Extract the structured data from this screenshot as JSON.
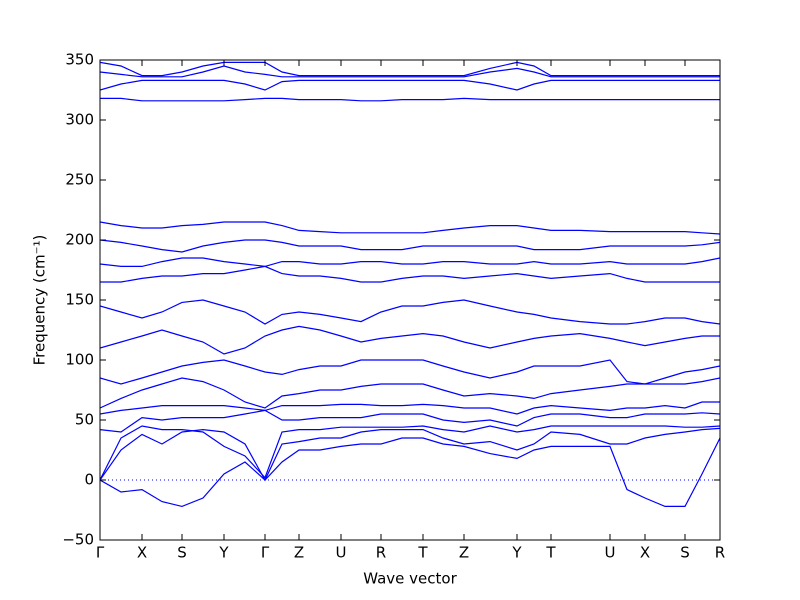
{
  "chart_data": {
    "type": "line",
    "y_label": "Frequency (cm⁻¹)",
    "x_label": "Wave vector",
    "x": [
      0,
      0.21,
      0.42,
      0.62,
      0.82,
      1.03,
      1.24,
      1.45,
      1.65,
      1.82,
      1.99,
      2.2,
      2.41,
      2.61,
      2.81,
      3.02,
      3.23,
      3.43,
      3.64,
      3.9,
      4.17,
      4.34,
      4.51,
      4.8,
      5.1,
      5.27,
      5.45,
      5.65,
      5.85,
      6.02,
      6.2
    ],
    "xlim": [
      0,
      6.2
    ],
    "xticks": [
      {
        "value": 0,
        "label": "Γ"
      },
      {
        "value": 0.42,
        "label": "X"
      },
      {
        "value": 0.82,
        "label": "S"
      },
      {
        "value": 1.24,
        "label": "Y"
      },
      {
        "value": 1.65,
        "label": "Γ"
      },
      {
        "value": 1.99,
        "label": "Z"
      },
      {
        "value": 2.41,
        "label": "U"
      },
      {
        "value": 2.81,
        "label": "R"
      },
      {
        "value": 3.23,
        "label": "T"
      },
      {
        "value": 3.64,
        "label": "Z"
      },
      {
        "value": 4.17,
        "label": "Y"
      },
      {
        "value": 4.51,
        "label": "T"
      },
      {
        "value": 5.1,
        "label": "U"
      },
      {
        "value": 5.45,
        "label": "X"
      },
      {
        "value": 5.85,
        "label": "S"
      },
      {
        "value": 6.2,
        "label": "R"
      }
    ],
    "ylim": [
      -50,
      350
    ],
    "yticks": [
      {
        "value": -50,
        "label": "−50"
      },
      0,
      50,
      100,
      150,
      200,
      250,
      300,
      350
    ],
    "grid": false,
    "reference_line": {
      "value": 0,
      "style": "dotted",
      "color": "#0000ff"
    },
    "series": [
      {
        "color": "#0000ff",
        "values": [
          0,
          -10,
          -8,
          -18,
          -22,
          -15,
          5,
          15,
          0,
          15,
          25,
          25,
          28,
          30,
          30,
          35,
          35,
          30,
          28,
          22,
          18,
          25,
          28,
          28,
          28,
          -8,
          -15,
          -22,
          -22,
          5,
          35
        ]
      },
      {
        "color": "#0000ff",
        "values": [
          0,
          25,
          38,
          30,
          40,
          42,
          40,
          30,
          0,
          30,
          32,
          35,
          35,
          40,
          42,
          42,
          42,
          35,
          30,
          32,
          25,
          30,
          40,
          38,
          30,
          30,
          35,
          38,
          40,
          42,
          43
        ]
      },
      {
        "color": "#0000ff",
        "values": [
          0,
          35,
          45,
          42,
          42,
          40,
          28,
          20,
          2,
          40,
          42,
          42,
          44,
          44,
          44,
          44,
          45,
          42,
          40,
          45,
          40,
          42,
          45,
          45,
          45,
          45,
          45,
          45,
          44,
          44,
          45
        ]
      },
      {
        "color": "#0000ff",
        "values": [
          42,
          40,
          52,
          50,
          52,
          52,
          52,
          55,
          58,
          50,
          50,
          52,
          52,
          52,
          55,
          55,
          55,
          50,
          48,
          50,
          45,
          52,
          55,
          55,
          52,
          52,
          55,
          55,
          55,
          56,
          55
        ]
      },
      {
        "color": "#0000ff",
        "values": [
          55,
          58,
          60,
          62,
          62,
          62,
          62,
          60,
          58,
          62,
          62,
          62,
          63,
          63,
          62,
          62,
          63,
          62,
          60,
          60,
          55,
          60,
          62,
          60,
          58,
          60,
          60,
          62,
          60,
          65,
          65
        ]
      },
      {
        "color": "#0000ff",
        "values": [
          60,
          68,
          75,
          80,
          85,
          82,
          75,
          65,
          60,
          70,
          72,
          75,
          75,
          78,
          80,
          80,
          80,
          75,
          70,
          72,
          70,
          68,
          72,
          75,
          78,
          80,
          80,
          80,
          80,
          82,
          85
        ]
      },
      {
        "color": "#0000ff",
        "values": [
          85,
          80,
          85,
          90,
          95,
          98,
          100,
          95,
          90,
          88,
          92,
          95,
          95,
          100,
          100,
          100,
          100,
          95,
          90,
          85,
          90,
          95,
          95,
          95,
          100,
          82,
          80,
          85,
          90,
          92,
          95
        ]
      },
      {
        "color": "#0000ff",
        "values": [
          110,
          115,
          120,
          125,
          120,
          115,
          105,
          110,
          120,
          125,
          128,
          125,
          120,
          115,
          118,
          120,
          122,
          120,
          115,
          110,
          115,
          118,
          120,
          122,
          118,
          115,
          112,
          115,
          118,
          120,
          120
        ]
      },
      {
        "color": "#0000ff",
        "values": [
          145,
          140,
          135,
          140,
          148,
          150,
          145,
          140,
          130,
          138,
          140,
          138,
          135,
          132,
          140,
          145,
          145,
          148,
          150,
          145,
          140,
          138,
          135,
          132,
          130,
          130,
          132,
          135,
          135,
          132,
          130
        ]
      },
      {
        "color": "#0000ff",
        "values": [
          165,
          165,
          168,
          170,
          170,
          172,
          172,
          175,
          178,
          172,
          170,
          170,
          168,
          165,
          165,
          168,
          170,
          170,
          168,
          170,
          172,
          170,
          168,
          170,
          172,
          168,
          165,
          165,
          165,
          165,
          165
        ]
      },
      {
        "color": "#0000ff",
        "values": [
          180,
          178,
          178,
          182,
          185,
          185,
          182,
          180,
          178,
          182,
          182,
          180,
          180,
          182,
          182,
          180,
          180,
          182,
          182,
          180,
          180,
          182,
          180,
          180,
          182,
          180,
          180,
          180,
          180,
          182,
          185
        ]
      },
      {
        "color": "#0000ff",
        "values": [
          200,
          198,
          195,
          192,
          190,
          195,
          198,
          200,
          200,
          198,
          195,
          195,
          195,
          192,
          192,
          192,
          195,
          195,
          195,
          195,
          195,
          192,
          192,
          192,
          195,
          195,
          195,
          195,
          195,
          196,
          198
        ]
      },
      {
        "color": "#0000ff",
        "values": [
          215,
          212,
          210,
          210,
          212,
          213,
          215,
          215,
          215,
          212,
          208,
          207,
          206,
          206,
          206,
          206,
          206,
          208,
          210,
          212,
          212,
          210,
          208,
          208,
          207,
          207,
          207,
          207,
          207,
          206,
          205
        ]
      },
      {
        "color": "#0000ff",
        "values": [
          318,
          318,
          316,
          316,
          316,
          316,
          316,
          317,
          318,
          318,
          317,
          317,
          317,
          316,
          316,
          317,
          317,
          317,
          318,
          317,
          317,
          317,
          317,
          317,
          317,
          317,
          317,
          317,
          317,
          317,
          317
        ]
      },
      {
        "color": "#0000ff",
        "values": [
          325,
          330,
          333,
          333,
          333,
          333,
          333,
          330,
          325,
          332,
          333,
          333,
          333,
          333,
          333,
          333,
          333,
          333,
          333,
          330,
          325,
          330,
          333,
          333,
          333,
          333,
          333,
          333,
          333,
          333,
          333
        ]
      },
      {
        "color": "#0000ff",
        "values": [
          340,
          338,
          336,
          336,
          336,
          340,
          345,
          340,
          338,
          336,
          336,
          336,
          336,
          336,
          336,
          336,
          336,
          336,
          336,
          340,
          343,
          340,
          336,
          336,
          336,
          336,
          336,
          336,
          336,
          336,
          336
        ]
      },
      {
        "color": "#0000ff",
        "values": [
          348,
          345,
          337,
          337,
          340,
          345,
          348,
          348,
          348,
          340,
          337,
          337,
          337,
          337,
          337,
          337,
          337,
          337,
          337,
          343,
          348,
          345,
          337,
          337,
          337,
          337,
          337,
          337,
          337,
          337,
          337
        ]
      }
    ]
  }
}
